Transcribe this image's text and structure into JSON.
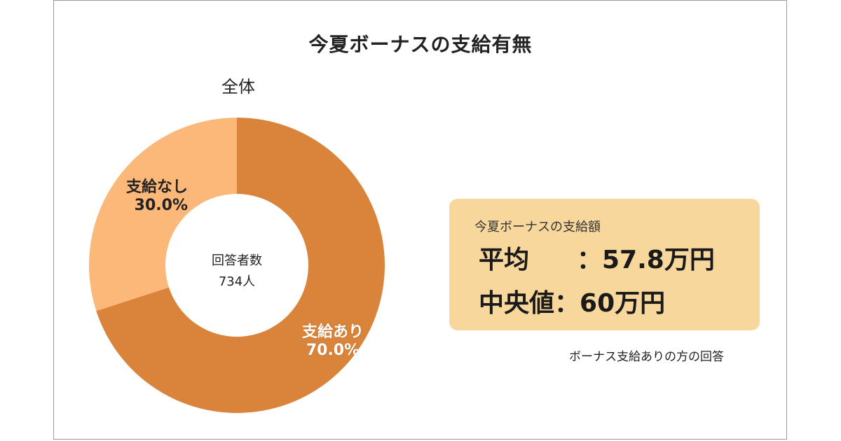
{
  "title": "今夏ボーナスの支給有無",
  "chart_data": {
    "type": "pie",
    "subtitle": "全体",
    "center_label": "回答者数",
    "center_value": "734人",
    "slices": [
      {
        "label": "支給あり",
        "value": 70.0,
        "value_text": "70.0%",
        "color": "#d9843a"
      },
      {
        "label": "支給なし",
        "value": 30.0,
        "value_text": "30.0%",
        "color": "#fbb878"
      }
    ]
  },
  "info_box": {
    "heading": "今夏ボーナスの支給額",
    "rows": [
      {
        "key": "平均",
        "value": "：57.8万円"
      },
      {
        "key": "中央値",
        "value": "：60万円"
      }
    ]
  },
  "note": "ボーナス支給ありの方の回答",
  "colors": {
    "box_bg": "#f8d79d",
    "border": "#9a9a9a"
  }
}
